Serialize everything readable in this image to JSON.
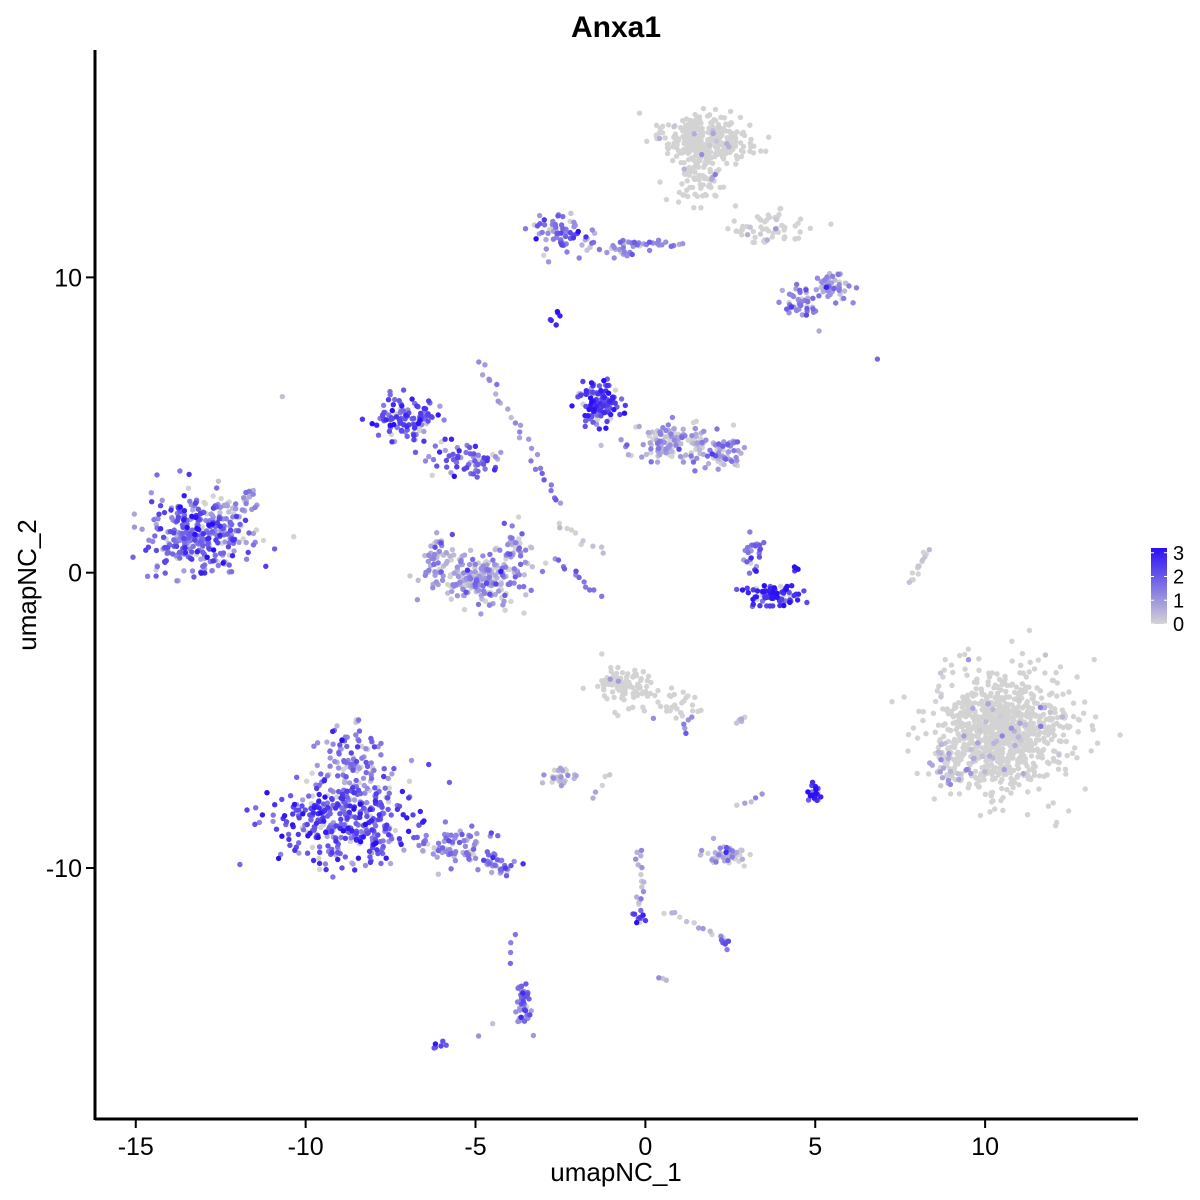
{
  "chart_data": {
    "type": "scatter",
    "title": "Anxa1",
    "xlabel": "umapNC_1",
    "ylabel": "umapNC_2",
    "xlim": [
      -16.2,
      14.5
    ],
    "ylim": [
      -18.5,
      17.7
    ],
    "xticks": [
      -15,
      -10,
      -5,
      0,
      5,
      10
    ],
    "xtick_labels": [
      "-15",
      "-10",
      "-5",
      "0",
      "5",
      "10"
    ],
    "yticks": [
      -10,
      0,
      10
    ],
    "ytick_labels": [
      "-10",
      "0",
      "10"
    ],
    "grid": false,
    "legend": {
      "position": "right",
      "type": "colorbar",
      "ticks": [
        0,
        1,
        2,
        3
      ],
      "tick_labels": [
        "0",
        "1",
        "2",
        "3"
      ],
      "colors": {
        "low": "#d3d3d3",
        "high": "#2a0ff5"
      },
      "range": [
        0,
        3.2
      ]
    },
    "point_size_note": "small dots",
    "clusters": [
      {
        "cx": -13.1,
        "cy": 1.3,
        "sx": 1.05,
        "sy": 0.9,
        "n": 340,
        "expr": 1.7
      },
      {
        "cx": -12.0,
        "cy": 2.2,
        "sx": 0.5,
        "sy": 0.4,
        "n": 30,
        "expr": 0.4
      },
      {
        "cx": -8.8,
        "cy": -8.3,
        "sx": 1.3,
        "sy": 1.0,
        "n": 380,
        "expr": 2.0
      },
      {
        "cx": -8.6,
        "cy": -6.3,
        "sx": 0.6,
        "sy": 0.7,
        "n": 90,
        "expr": 1.4
      },
      {
        "cx": -5.5,
        "cy": -9.3,
        "sx": 0.9,
        "sy": 0.4,
        "n": 80,
        "expr": 1.5
      },
      {
        "cx": -4.3,
        "cy": -10.0,
        "sx": 0.45,
        "sy": 0.25,
        "n": 30,
        "expr": 1.5
      },
      {
        "cx": -7.0,
        "cy": 5.2,
        "sx": 0.6,
        "sy": 0.5,
        "n": 110,
        "expr": 2.1
      },
      {
        "cx": -5.3,
        "cy": 3.8,
        "sx": 0.7,
        "sy": 0.35,
        "n": 60,
        "expr": 1.8
      },
      {
        "cx": -4.9,
        "cy": -0.2,
        "sx": 0.9,
        "sy": 0.55,
        "n": 220,
        "expr": 0.8
      },
      {
        "cx": -6.2,
        "cy": 0.5,
        "sx": 0.3,
        "sy": 0.5,
        "n": 40,
        "expr": 0.8
      },
      {
        "cx": -3.9,
        "cy": 0.7,
        "sx": 0.3,
        "sy": 0.5,
        "n": 40,
        "expr": 1.0
      },
      {
        "cx": -1.3,
        "cy": 5.8,
        "sx": 0.45,
        "sy": 0.45,
        "n": 120,
        "expr": 2.3
      },
      {
        "cx": 0.8,
        "cy": 4.4,
        "sx": 1.0,
        "sy": 0.4,
        "n": 130,
        "expr": 0.7
      },
      {
        "cx": 2.2,
        "cy": 4.0,
        "sx": 0.45,
        "sy": 0.35,
        "n": 60,
        "expr": 0.9
      },
      {
        "cx": 3.8,
        "cy": -0.8,
        "sx": 0.5,
        "sy": 0.25,
        "n": 80,
        "expr": 2.6
      },
      {
        "cx": 3.2,
        "cy": 0.5,
        "sx": 0.25,
        "sy": 0.45,
        "n": 25,
        "expr": 1.7
      },
      {
        "cx": 1.8,
        "cy": 14.6,
        "sx": 0.8,
        "sy": 0.55,
        "n": 330,
        "expr": 0.05
      },
      {
        "cx": 1.6,
        "cy": 13.2,
        "sx": 0.5,
        "sy": 0.5,
        "n": 60,
        "expr": 0.1
      },
      {
        "cx": 3.5,
        "cy": 11.7,
        "sx": 0.8,
        "sy": 0.4,
        "n": 60,
        "expr": 0.15
      },
      {
        "cx": -2.4,
        "cy": 11.5,
        "sx": 0.6,
        "sy": 0.45,
        "n": 70,
        "expr": 1.4
      },
      {
        "cx": -0.7,
        "cy": 11.0,
        "sx": 0.6,
        "sy": 0.2,
        "n": 30,
        "expr": 1.1
      },
      {
        "cx": 5.5,
        "cy": 9.7,
        "sx": 0.35,
        "sy": 0.3,
        "n": 50,
        "expr": 0.9
      },
      {
        "cx": 4.6,
        "cy": 9.2,
        "sx": 0.3,
        "sy": 0.3,
        "n": 40,
        "expr": 1.3
      },
      {
        "cx": 10.6,
        "cy": -5.3,
        "sx": 1.3,
        "sy": 1.35,
        "n": 900,
        "expr": 0.1
      },
      {
        "cx": 9.0,
        "cy": -6.5,
        "sx": 0.45,
        "sy": 0.6,
        "n": 60,
        "expr": 0.3
      },
      {
        "cx": -0.6,
        "cy": -3.8,
        "sx": 0.55,
        "sy": 0.45,
        "n": 110,
        "expr": 0.2
      },
      {
        "cx": 0.9,
        "cy": -4.4,
        "sx": 0.4,
        "sy": 0.4,
        "n": 30,
        "expr": 0.2
      },
      {
        "cx": -2.5,
        "cy": -6.9,
        "sx": 0.35,
        "sy": 0.25,
        "n": 30,
        "expr": 0.5
      },
      {
        "cx": 2.4,
        "cy": -9.5,
        "sx": 0.45,
        "sy": 0.2,
        "n": 50,
        "expr": 0.6
      },
      {
        "cx": 5.0,
        "cy": -7.4,
        "sx": 0.12,
        "sy": 0.25,
        "n": 20,
        "expr": 2.9
      },
      {
        "cx": -3.6,
        "cy": -14.6,
        "sx": 0.15,
        "sy": 0.5,
        "n": 40,
        "expr": 1.5
      },
      {
        "cx": -0.2,
        "cy": -11.6,
        "sx": 0.15,
        "sy": 0.3,
        "n": 12,
        "expr": 2.0
      },
      {
        "cx": 2.3,
        "cy": -12.5,
        "sx": 0.15,
        "sy": 0.15,
        "n": 10,
        "expr": 2.0
      }
    ],
    "trails": [
      {
        "from": [
          -0.4,
          11.2
        ],
        "to": [
          1.1,
          11.1
        ],
        "n": 18,
        "expr": 1.4
      },
      {
        "from": [
          -4.9,
          7.2
        ],
        "to": [
          -3.3,
          4.0
        ],
        "n": 18,
        "expr": 0.8
      },
      {
        "from": [
          -3.3,
          3.8
        ],
        "to": [
          -2.5,
          2.3
        ],
        "n": 10,
        "expr": 1.6
      },
      {
        "from": [
          -2.6,
          1.6
        ],
        "to": [
          -1.3,
          0.7
        ],
        "n": 10,
        "expr": 0.2
      },
      {
        "from": [
          -2.7,
          0.5
        ],
        "to": [
          -1.3,
          -0.8
        ],
        "n": 12,
        "expr": 1.4
      },
      {
        "from": [
          -11.8,
          2.4
        ],
        "to": [
          -11.5,
          2.8
        ],
        "n": 6,
        "expr": 1.0
      },
      {
        "from": [
          -2.7,
          8.5
        ],
        "to": [
          -2.6,
          8.8
        ],
        "n": 6,
        "expr": 2.5
      },
      {
        "from": [
          7.8,
          -0.4
        ],
        "to": [
          8.3,
          0.8
        ],
        "n": 14,
        "expr": 0.0
      },
      {
        "from": [
          -0.2,
          -9.3
        ],
        "to": [
          -0.1,
          -11.2
        ],
        "n": 14,
        "expr": 0.6
      },
      {
        "from": [
          -4.0,
          -13.2
        ],
        "to": [
          -3.9,
          -12.3
        ],
        "n": 4,
        "expr": 1.8
      },
      {
        "from": [
          -6.2,
          -16.1
        ],
        "to": [
          -5.9,
          -15.9
        ],
        "n": 6,
        "expr": 2.2
      },
      {
        "from": [
          0.6,
          -11.5
        ],
        "to": [
          2.0,
          -12.2
        ],
        "n": 10,
        "expr": 0.3
      },
      {
        "from": [
          2.8,
          -7.8
        ],
        "to": [
          3.4,
          -7.5
        ],
        "n": 5,
        "expr": 0.4
      },
      {
        "from": [
          2.6,
          -5.1
        ],
        "to": [
          2.9,
          -5.0
        ],
        "n": 5,
        "expr": 0.3
      },
      {
        "from": [
          1.2,
          -4.9
        ],
        "to": [
          1.2,
          -5.5
        ],
        "n": 5,
        "expr": 1.5
      },
      {
        "from": [
          0.5,
          -13.7
        ],
        "to": [
          0.6,
          -13.8
        ],
        "n": 3,
        "expr": 0.5
      },
      {
        "from": [
          -1.5,
          -7.6
        ],
        "to": [
          -1.0,
          -6.7
        ],
        "n": 5,
        "expr": 0.2
      },
      {
        "from": [
          -4.5,
          -15.3
        ],
        "to": [
          -4.9,
          -15.7
        ],
        "n": 2,
        "expr": 1.0
      },
      {
        "from": [
          6.8,
          7.1
        ],
        "to": [
          6.8,
          7.1
        ],
        "n": 1,
        "expr": 1.7
      },
      {
        "from": [
          -10.6,
          6.1
        ],
        "to": [
          -10.6,
          6.1
        ],
        "n": 1,
        "expr": 0.3
      },
      {
        "from": [
          4.9,
          9.0
        ],
        "to": [
          5.0,
          8.8
        ],
        "n": 3,
        "expr": 1.0
      },
      {
        "from": [
          5.1,
          8.2
        ],
        "to": [
          5.1,
          8.2
        ],
        "n": 1,
        "expr": 0.0
      },
      {
        "from": [
          4.4,
          0.1
        ],
        "to": [
          4.5,
          0.3
        ],
        "n": 4,
        "expr": 3.2
      }
    ]
  }
}
